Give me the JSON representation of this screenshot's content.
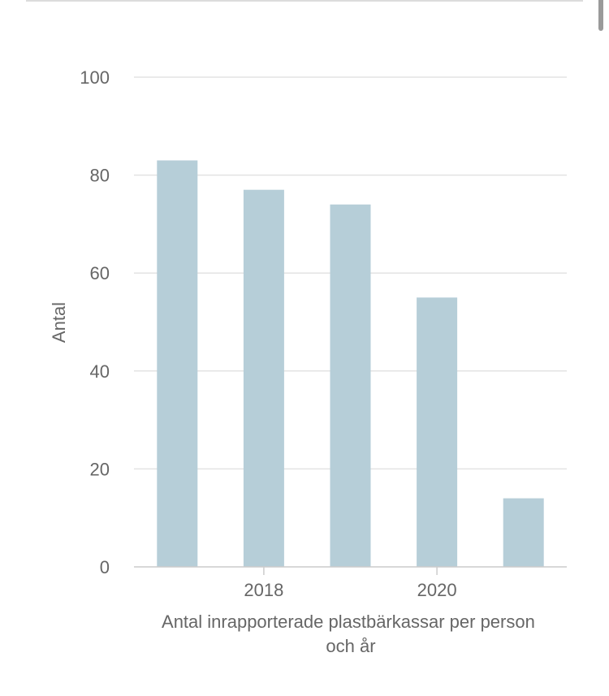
{
  "chart_data": {
    "type": "bar",
    "x": [
      2017,
      2018,
      2019,
      2020,
      2021
    ],
    "values": [
      83,
      77,
      74,
      55,
      14
    ],
    "x_tick_labels": [
      "2018",
      "2020"
    ],
    "x_tick_values": [
      2018,
      2020
    ],
    "y_ticks": [
      0,
      20,
      40,
      60,
      80,
      100
    ],
    "ylim": [
      0,
      100
    ],
    "ylabel": "Antal",
    "xlabel_lines": [
      "Antal inrapporterade plastbärkassar per person",
      "och år"
    ],
    "grid": true,
    "legend": "none",
    "bar_color": "#b6ced8",
    "grid_color": "#e3e3e3",
    "axis_color": "#cccccc",
    "label_color": "#666666"
  }
}
